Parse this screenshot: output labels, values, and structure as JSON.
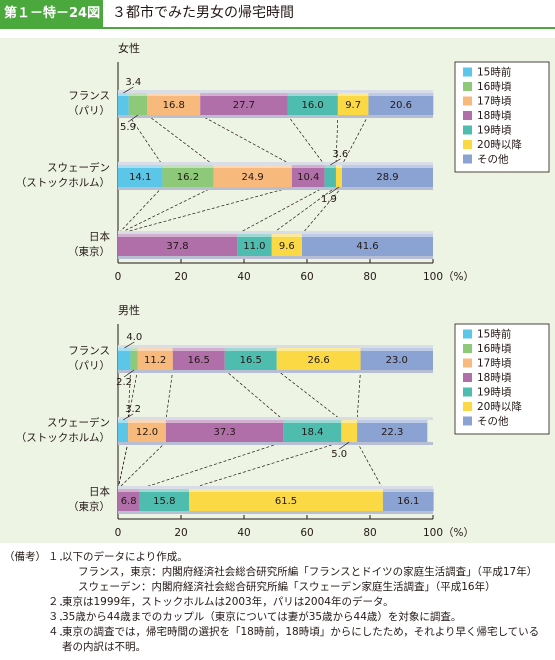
{
  "header": {
    "figure_number": "第１－特－24図",
    "title": "３都市でみた男女の帰宅時間"
  },
  "colors": {
    "header_green": "#4aa83c",
    "panel_bg": "#edf4e4",
    "categories": [
      "#5bc6e8",
      "#8ec97a",
      "#f8b97c",
      "#b16fa9",
      "#4fbcb0",
      "#fbd945",
      "#8aa3d3"
    ]
  },
  "legend_items": [
    "15時前",
    "16時頃",
    "17時頃",
    "18時頃",
    "19時頃",
    "20時以降",
    "その他"
  ],
  "chart_data": [
    {
      "type": "bar",
      "orientation": "horizontal",
      "stacked": true,
      "panel_title": "女性",
      "categories": [
        "フランス（パリ）",
        "スウェーデン（ストックホルム）",
        "日本（東京）"
      ],
      "category_lines": [
        [
          "フランス",
          "（パリ）"
        ],
        [
          "スウェーデン",
          "（ストックホルム）"
        ],
        [
          "日本",
          "（東京）"
        ]
      ],
      "series": [
        {
          "name": "15時前",
          "values": [
            3.4,
            14.1,
            0
          ]
        },
        {
          "name": "16時頃",
          "values": [
            5.9,
            16.2,
            0
          ]
        },
        {
          "name": "17時頃",
          "values": [
            16.8,
            24.9,
            0
          ]
        },
        {
          "name": "18時頃",
          "values": [
            27.7,
            10.4,
            37.8
          ]
        },
        {
          "name": "19時頃",
          "values": [
            16.0,
            3.6,
            11.0
          ]
        },
        {
          "name": "20時以降",
          "values": [
            9.7,
            1.9,
            9.6
          ]
        },
        {
          "name": "その他",
          "values": [
            20.6,
            28.9,
            41.6
          ]
        }
      ],
      "xlim": [
        0,
        100
      ],
      "xticks": [
        0,
        20,
        40,
        60,
        80,
        100
      ],
      "unit_label": "（%）",
      "legend_position": "right"
    },
    {
      "type": "bar",
      "orientation": "horizontal",
      "stacked": true,
      "panel_title": "男性",
      "categories": [
        "フランス（パリ）",
        "スウェーデン（ストックホルム）",
        "日本（東京）"
      ],
      "category_lines": [
        [
          "フランス",
          "（パリ）"
        ],
        [
          "スウェーデン",
          "（ストックホルム）"
        ],
        [
          "日本",
          "（東京）"
        ]
      ],
      "series": [
        {
          "name": "15時前",
          "values": [
            4.0,
            3.2,
            0
          ]
        },
        {
          "name": "16時頃",
          "values": [
            2.2,
            0,
            0
          ]
        },
        {
          "name": "17時頃",
          "values": [
            11.2,
            12.0,
            0
          ]
        },
        {
          "name": "18時頃",
          "values": [
            16.5,
            37.3,
            6.8
          ]
        },
        {
          "name": "19時頃",
          "values": [
            16.5,
            18.4,
            15.8
          ]
        },
        {
          "name": "20時以降",
          "values": [
            26.6,
            5.0,
            61.5
          ]
        },
        {
          "name": "その他",
          "values": [
            23.0,
            22.3,
            16.1
          ]
        }
      ],
      "xlim": [
        0,
        100
      ],
      "xticks": [
        0,
        20,
        40,
        60,
        80,
        100
      ],
      "unit_label": "（%）",
      "legend_position": "right"
    }
  ],
  "notes": {
    "head": "（備考）",
    "items": [
      {
        "num": "１．",
        "lines": [
          "以下のデータにより作成。",
          "フランス，東京：内閣府経済社会総合研究所編「フランスとドイツの家庭生活調査」（平成17年）",
          "スウェーデン：内閣府経済社会総合研究所編「スウェーデン家庭生活調査」（平成16年）"
        ]
      },
      {
        "num": "２．",
        "lines": [
          "東京は1999年，ストックホルムは2003年，パリは2004年のデータ。"
        ]
      },
      {
        "num": "３．",
        "lines": [
          "35歳から44歳までのカップル（東京については妻が35歳から44歳）を対象に調査。"
        ]
      },
      {
        "num": "４．",
        "lines": [
          "東京の調査では，帰宅時間の選択を「18時前，18時頃」からにしたため，それより早く帰宅している",
          "者の内訳は不明。"
        ]
      }
    ]
  }
}
